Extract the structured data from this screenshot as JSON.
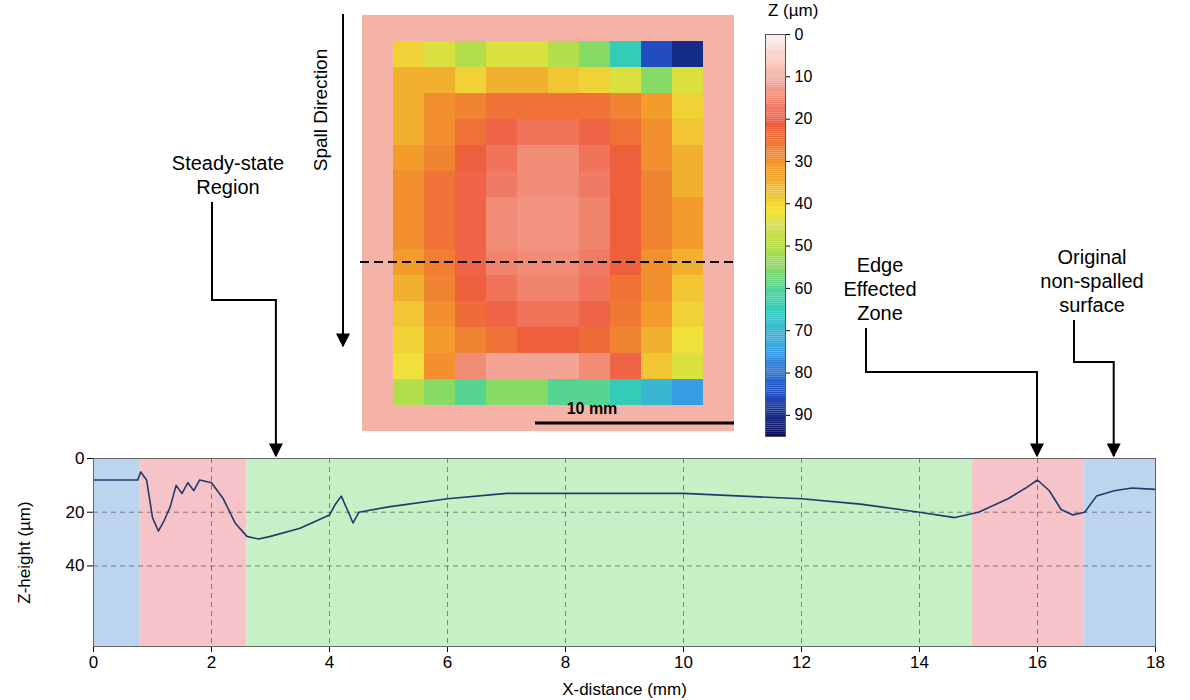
{
  "chart_data": [
    {
      "type": "heatmap",
      "annotations": [
        "Spall Direction",
        "10 mm"
      ],
      "colorbar": {
        "label": "Z (µm)",
        "range": [
          0,
          95
        ],
        "ticks": [
          0,
          10,
          20,
          30,
          40,
          50,
          60,
          70,
          80,
          90
        ]
      },
      "cells": [
        [
          10,
          10,
          10,
          10,
          10,
          10,
          10,
          10,
          10,
          10,
          10,
          10
        ],
        [
          10,
          40,
          45,
          50,
          45,
          45,
          50,
          55,
          65,
          85,
          90,
          10
        ],
        [
          10,
          35,
          35,
          40,
          35,
          35,
          38,
          40,
          45,
          55,
          45,
          10
        ],
        [
          10,
          35,
          30,
          28,
          25,
          25,
          25,
          25,
          28,
          32,
          40,
          10
        ],
        [
          10,
          35,
          30,
          25,
          20,
          18,
          18,
          20,
          25,
          30,
          38,
          10
        ],
        [
          10,
          32,
          28,
          22,
          18,
          15,
          15,
          18,
          22,
          30,
          35,
          10
        ],
        [
          10,
          30,
          25,
          20,
          17,
          15,
          15,
          17,
          22,
          28,
          35,
          10
        ],
        [
          10,
          30,
          25,
          20,
          15,
          14,
          14,
          16,
          22,
          28,
          32,
          10
        ],
        [
          10,
          30,
          25,
          20,
          15,
          14,
          14,
          16,
          22,
          28,
          32,
          10
        ],
        [
          10,
          32,
          27,
          20,
          16,
          15,
          15,
          17,
          22,
          30,
          35,
          10
        ],
        [
          10,
          35,
          28,
          22,
          18,
          16,
          16,
          18,
          25,
          30,
          38,
          10
        ],
        [
          10,
          38,
          30,
          24,
          20,
          18,
          18,
          20,
          26,
          32,
          40,
          10
        ],
        [
          10,
          40,
          32,
          28,
          25,
          22,
          22,
          24,
          28,
          35,
          42,
          10
        ],
        [
          10,
          42,
          30,
          15,
          12,
          12,
          12,
          15,
          20,
          38,
          45,
          10
        ],
        [
          10,
          50,
          55,
          60,
          55,
          55,
          60,
          60,
          65,
          70,
          75,
          10
        ],
        [
          10,
          10,
          10,
          10,
          10,
          10,
          10,
          10,
          10,
          10,
          10,
          10
        ]
      ]
    },
    {
      "type": "line",
      "xlabel": "X-distance (mm)",
      "ylabel": "Z-height (µm)",
      "xlim": [
        0,
        18
      ],
      "ylim": [
        70,
        0
      ],
      "xticks": [
        0,
        2,
        4,
        6,
        8,
        10,
        12,
        14,
        16,
        18
      ],
      "yticks": [
        0,
        20,
        40
      ],
      "grid": true,
      "color": "#1f3b6e",
      "x": [
        0,
        0.5,
        0.75,
        0.8,
        0.9,
        1.0,
        1.1,
        1.2,
        1.3,
        1.4,
        1.5,
        1.6,
        1.7,
        1.8,
        2.0,
        2.2,
        2.4,
        2.6,
        2.8,
        3.0,
        3.5,
        4.0,
        4.1,
        4.2,
        4.3,
        4.4,
        4.5,
        5.0,
        6.0,
        7.0,
        8.0,
        9.0,
        10.0,
        11.0,
        12.0,
        13.0,
        14.0,
        14.6,
        15.0,
        15.5,
        15.8,
        16.0,
        16.2,
        16.4,
        16.6,
        16.8,
        17.0,
        17.3,
        17.6,
        18.0
      ],
      "values": [
        8,
        8,
        8,
        5,
        8,
        22,
        27,
        23,
        18,
        10,
        13,
        9,
        12,
        8,
        9,
        15,
        24,
        29,
        30,
        29,
        26,
        21,
        17,
        14,
        19,
        24,
        20,
        18,
        15,
        13,
        13,
        13,
        13,
        14,
        15,
        17,
        20,
        22,
        20,
        15,
        11,
        8,
        12,
        19,
        21,
        20,
        14,
        12,
        11,
        11.5
      ],
      "regions": [
        {
          "from": 0,
          "to": 0.8,
          "color": "#bcd4ee"
        },
        {
          "from": 0.8,
          "to": 2.6,
          "color": "#f6c3c8"
        },
        {
          "from": 2.6,
          "to": 14.9,
          "color": "#c6f0c6"
        },
        {
          "from": 14.9,
          "to": 16.8,
          "color": "#f6c3c8"
        },
        {
          "from": 16.8,
          "to": 18,
          "color": "#bcd4ee"
        }
      ],
      "annotations": [
        {
          "text": "Steady-state Region",
          "x": 3.1
        },
        {
          "text": "Edge Effected Zone",
          "x": 16
        },
        {
          "text": "Original non-spalled surface",
          "x": 17.3
        }
      ]
    }
  ]
}
